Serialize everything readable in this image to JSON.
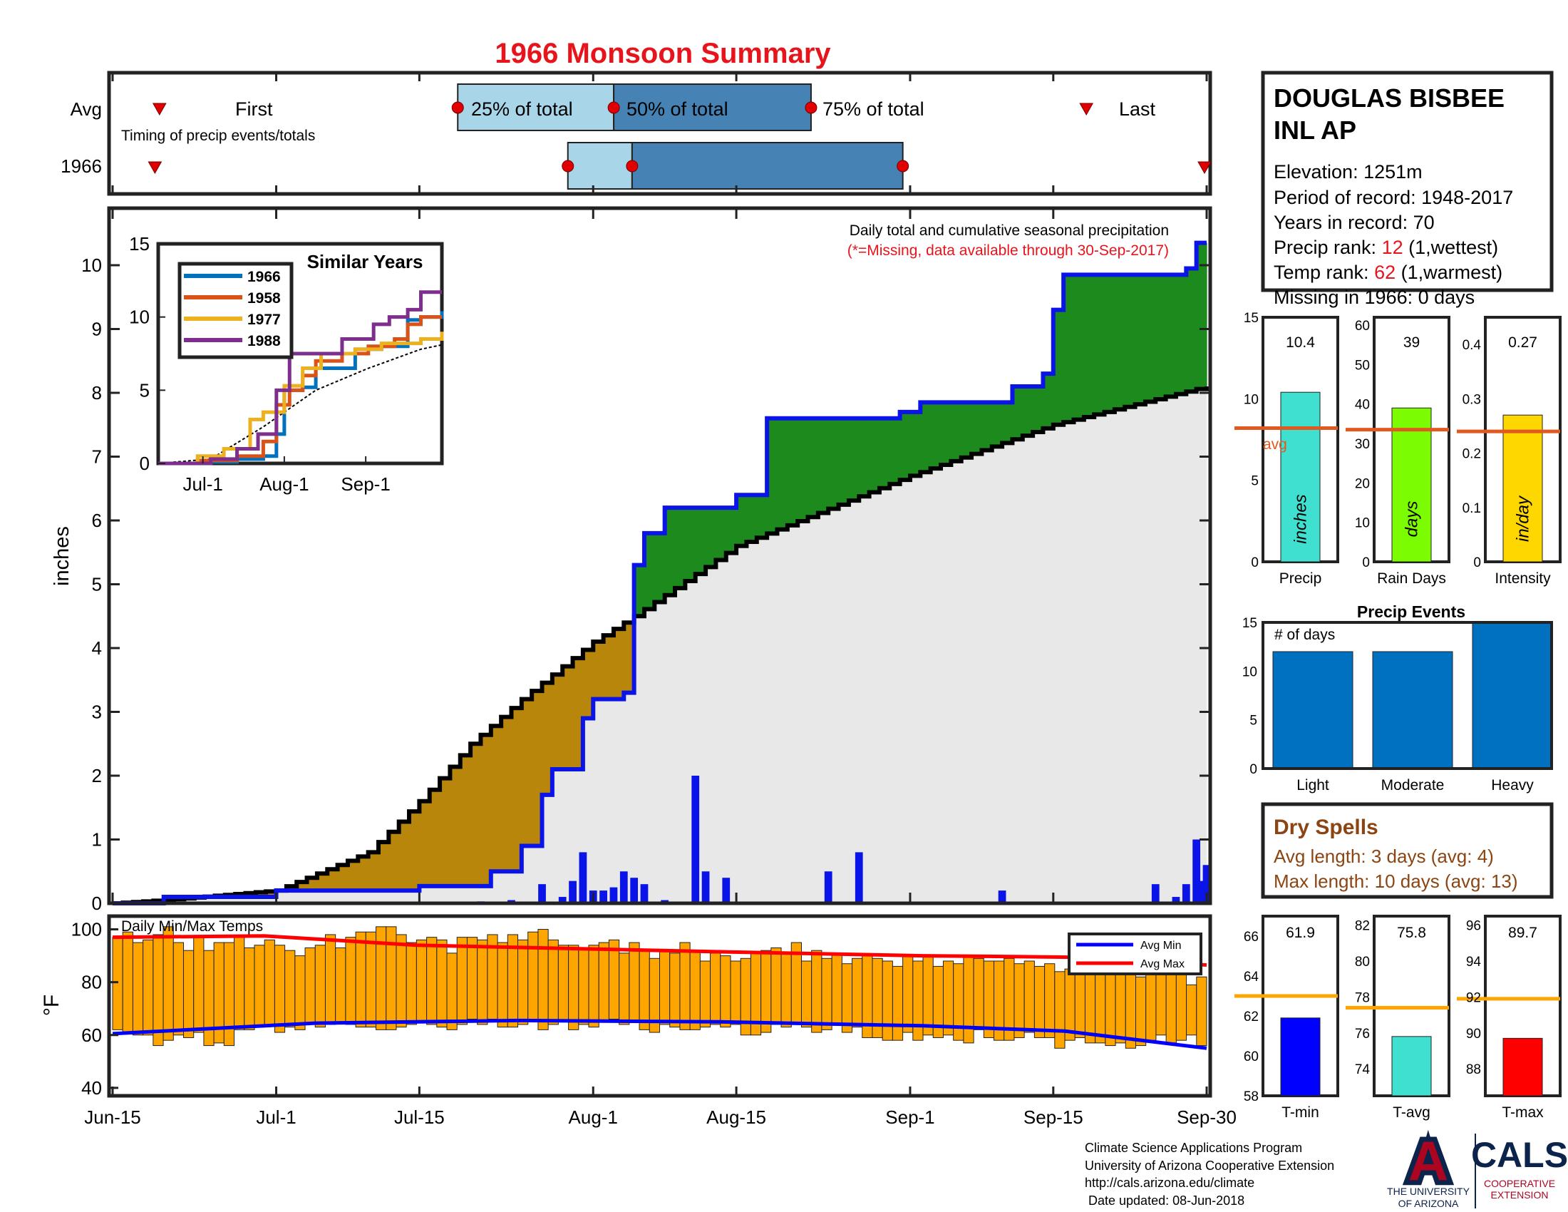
{
  "title": "1966 Monsoon Summary",
  "colors": {
    "title": "#e8141c",
    "precip_fill": "#1d8a1d",
    "deficit_fill": "#b8860b",
    "climo_fill": "#e8e8e8",
    "obs_line": "#0a14e8",
    "box_light": "#a8d6e8",
    "box_dark": "#4682b4",
    "marker": "#e00000",
    "avg_line": "#e05a20",
    "precip_bar": "#40e0d0",
    "days_bar": "#7cfc00",
    "intensity_bar": "#ffd700",
    "events_bar": "#0070c0",
    "temp_bar": "#ffa500",
    "tmin_bar": "#0000ff",
    "tavg_bar": "#40e0d0",
    "tmax_bar": "#ff0000",
    "dry_text": "#8b4513"
  },
  "timing": {
    "row_labels": [
      "Avg",
      "1966"
    ],
    "caption": "Timing of precip events/totals",
    "avg_labels": {
      "first": "First",
      "p25": "25% of total",
      "p50": "50% of total",
      "p75": "75% of total",
      "last": "Last"
    },
    "avg_days": {
      "first": 11,
      "p25": 76,
      "p50": 110,
      "p75": 153,
      "last": 213
    },
    "yr_days": {
      "first": 10,
      "p25": 100,
      "p50": 114,
      "p75": 173,
      "last": 238
    }
  },
  "station": {
    "name_line1": "DOUGLAS BISBEE",
    "name_line2": "INL AP",
    "elevation": "Elevation: 1251m",
    "period": "Period of record: 1948-2017",
    "years": "Years in record: 70",
    "precip_rank_label": "Precip rank: ",
    "precip_rank_value": "12",
    "precip_rank_note": " (1,wettest)",
    "temp_rank_label": "Temp rank: ",
    "temp_rank_value": "62",
    "temp_rank_note": " (1,warmest)",
    "missing": "Missing in 1966: 0 days"
  },
  "main": {
    "note_line1": "Daily total and cumulative seasonal precipitation",
    "note_line2": "(*=Missing, data available through 30-Sep-2017)",
    "ylabel": "inches"
  },
  "inset": {
    "title": "Similar Years",
    "xticks": [
      "Jul-1",
      "Aug-1",
      "Sep-1"
    ],
    "yticks": [
      "0",
      "5",
      "10",
      "15"
    ]
  },
  "summary_bars": {
    "precip": {
      "value": 10.4,
      "label": "10.4",
      "avg": 8.2,
      "xlabel": "Precip",
      "inside": "inches",
      "avg_label": "avg",
      "yticks": [
        "0",
        "5",
        "10",
        "15"
      ]
    },
    "days": {
      "value": 39,
      "label": "39",
      "avg": 33.5,
      "xlabel": "Rain Days",
      "inside": "days",
      "yticks": [
        "0",
        "10",
        "20",
        "30",
        "40",
        "50",
        "60"
      ]
    },
    "intensity": {
      "value": 0.27,
      "label": "0.27",
      "avg": 0.24,
      "xlabel": "Intensity",
      "inside": "in/day",
      "yticks": [
        "0",
        "0.1",
        "0.2",
        "0.3",
        "0.4"
      ]
    }
  },
  "events": {
    "title": "Precip Events",
    "inner_label": "# of days",
    "yticks": [
      "0",
      "5",
      "10",
      "15"
    ]
  },
  "dry_spells": {
    "title": "Dry Spells",
    "avg": "Avg length: 3 days (avg: 4)",
    "max": "Max length: 10 days (avg: 13)"
  },
  "temps_panel": {
    "label": "Daily Min/Max Temps",
    "ylabel": "°F",
    "legend_min": "Avg Min",
    "legend_max": "Avg Max",
    "yticks": [
      "40",
      "60",
      "80",
      "100"
    ],
    "xticks": [
      "Jun-15",
      "Jul-1",
      "Jul-15",
      "Aug-1",
      "Aug-15",
      "Sep-1",
      "Sep-15",
      "Sep-30"
    ]
  },
  "temp_bars": {
    "tmin": {
      "value": 61.9,
      "label": "61.9",
      "avg": 63.0,
      "xlabel": "T-min",
      "yticks": [
        "58",
        "60",
        "62",
        "64",
        "66"
      ]
    },
    "tavg": {
      "value": 75.8,
      "label": "75.8",
      "avg": 77.4,
      "xlabel": "T-avg",
      "yticks": [
        "74",
        "76",
        "78",
        "80",
        "82"
      ]
    },
    "tmax": {
      "value": 89.7,
      "label": "89.7",
      "avg": 91.9,
      "xlabel": "T-max",
      "yticks": [
        "88",
        "90",
        "92",
        "94",
        "96"
      ]
    }
  },
  "footer": {
    "line1": "Climate Science Applications Program",
    "line2": "University of Arizona Cooperative Extension",
    "line3": "http://cals.arizona.edu/climate",
    "line4": " Date updated: 08-Jun-2018",
    "ua_logo": "A",
    "ua_line1": "THE UNIVERSITY",
    "ua_line2": "OF ARIZONA",
    "cals": "CALS",
    "cals_line1": "COOPERATIVE",
    "cals_line2": "EXTENSION"
  },
  "chart_data": [
    {
      "type": "area",
      "title": "Daily total and cumulative seasonal precipitation",
      "ylabel": "inches",
      "ylim": [
        0,
        10.7
      ],
      "xlim": [
        "Jun-15",
        "Sep-30"
      ],
      "x_tick_labels": [
        "Jun-15",
        "Jul-1",
        "Jul-15",
        "Aug-1",
        "Aug-15",
        "Sep-1",
        "Sep-15",
        "Sep-30"
      ],
      "y_tick_labels": [
        "0",
        "1",
        "2",
        "3",
        "4",
        "5",
        "6",
        "7",
        "8",
        "9",
        "10"
      ],
      "cumulative_1966_points": [
        [
          "Jun-15",
          0
        ],
        [
          "Jun-20",
          0.1
        ],
        [
          "Jul-1",
          0.2
        ],
        [
          "Jul-15",
          0.27
        ],
        [
          "Jul-22",
          0.5
        ],
        [
          "Jul-25",
          0.9
        ],
        [
          "Jul-27",
          1.7
        ],
        [
          "Jul-28",
          2.1
        ],
        [
          "Jul-31",
          2.9
        ],
        [
          "Aug-1",
          3.2
        ],
        [
          "Aug-4",
          3.3
        ],
        [
          "Aug-5",
          5.3
        ],
        [
          "Aug-6",
          5.8
        ],
        [
          "Aug-8",
          6.2
        ],
        [
          "Aug-15",
          6.4
        ],
        [
          "Aug-18",
          7.6
        ],
        [
          "Aug-31",
          7.7
        ],
        [
          "Sep-2",
          7.85
        ],
        [
          "Sep-10",
          7.85
        ],
        [
          "Sep-11",
          8.1
        ],
        [
          "Sep-14",
          8.3
        ],
        [
          "Sep-15",
          9.3
        ],
        [
          "Sep-16",
          9.85
        ],
        [
          "Sep-28",
          9.95
        ],
        [
          "Sep-29",
          10.35
        ],
        [
          "Sep-30",
          10.35
        ]
      ],
      "cumulative_average_points": [
        [
          "Jun-15",
          0
        ],
        [
          "Jun-20",
          0.05
        ],
        [
          "Jul-1",
          0.2
        ],
        [
          "Jul-10",
          0.8
        ],
        [
          "Jul-15",
          1.6
        ],
        [
          "Jul-20",
          2.5
        ],
        [
          "Jul-25",
          3.2
        ],
        [
          "Aug-1",
          4.1
        ],
        [
          "Aug-5",
          4.5
        ],
        [
          "Aug-15",
          5.6
        ],
        [
          "Sep-1",
          6.7
        ],
        [
          "Sep-15",
          7.5
        ],
        [
          "Sep-30",
          8.1
        ]
      ],
      "daily_precip": [
        [
          "Jul-21",
          0.03
        ],
        [
          "Jul-24",
          0.05
        ],
        [
          "Jul-27",
          0.3
        ],
        [
          "Jul-29",
          0.1
        ],
        [
          "Jul-30",
          0.35
        ],
        [
          "Jul-31",
          0.8
        ],
        [
          "Aug-1",
          0.2
        ],
        [
          "Aug-2",
          0.2
        ],
        [
          "Aug-3",
          0.25
        ],
        [
          "Aug-4",
          0.5
        ],
        [
          "Aug-5",
          0.4
        ],
        [
          "Aug-6",
          0.3
        ],
        [
          "Aug-8",
          0.05
        ],
        [
          "Aug-11",
          2.0
        ],
        [
          "Aug-12",
          0.5
        ],
        [
          "Aug-14",
          0.4
        ],
        [
          "Aug-24",
          0.5
        ],
        [
          "Aug-27",
          0.8
        ],
        [
          "Sep-10",
          0.2
        ],
        [
          "Sep-25",
          0.3
        ],
        [
          "Sep-27",
          0.1
        ],
        [
          "Sep-28",
          0.3
        ],
        [
          "Sep-29",
          1.0
        ],
        [
          "Sep-30",
          0.6
        ],
        [
          "Sep-30",
          0.35
        ]
      ]
    },
    {
      "type": "line",
      "title": "Similar Years",
      "xticks": [
        "Jul-1",
        "Aug-1",
        "Sep-1"
      ],
      "ylim": [
        0,
        15
      ],
      "series": [
        {
          "name": "1966",
          "color": "#0072bd",
          "points": [
            [
              0,
              0
            ],
            [
              20,
              0.1
            ],
            [
              30,
              0.3
            ],
            [
              40,
              0.5
            ],
            [
              45,
              2
            ],
            [
              48,
              5
            ],
            [
              55,
              5.2
            ],
            [
              60,
              6.5
            ],
            [
              75,
              7.8
            ],
            [
              85,
              8
            ],
            [
              95,
              9.8
            ],
            [
              100,
              10
            ],
            [
              108,
              10.4
            ]
          ]
        },
        {
          "name": "1958",
          "color": "#d95319",
          "points": [
            [
              0,
              0
            ],
            [
              15,
              0.2
            ],
            [
              30,
              0.5
            ],
            [
              40,
              1.5
            ],
            [
              45,
              4
            ],
            [
              50,
              5
            ],
            [
              55,
              6
            ],
            [
              60,
              7
            ],
            [
              70,
              7.5
            ],
            [
              80,
              8
            ],
            [
              90,
              8.5
            ],
            [
              95,
              9.5
            ],
            [
              100,
              10
            ],
            [
              108,
              10
            ]
          ]
        },
        {
          "name": "1977",
          "color": "#edb120",
          "points": [
            [
              0,
              0
            ],
            [
              15,
              0.5
            ],
            [
              25,
              1
            ],
            [
              35,
              3
            ],
            [
              40,
              3.5
            ],
            [
              48,
              5.3
            ],
            [
              55,
              6.5
            ],
            [
              62,
              7.5
            ],
            [
              75,
              7.8
            ],
            [
              85,
              8.2
            ],
            [
              100,
              8.5
            ],
            [
              108,
              9
            ]
          ]
        },
        {
          "name": "1988",
          "color": "#7e2f8e",
          "points": [
            [
              0,
              0
            ],
            [
              20,
              0.3
            ],
            [
              30,
              1
            ],
            [
              38,
              2
            ],
            [
              45,
              5
            ],
            [
              50,
              7.5
            ],
            [
              60,
              7.5
            ],
            [
              70,
              8.5
            ],
            [
              75,
              8.5
            ],
            [
              82,
              9.5
            ],
            [
              88,
              10
            ],
            [
              95,
              10.5
            ],
            [
              100,
              11.7
            ],
            [
              108,
              11.7
            ]
          ]
        }
      ],
      "average_line": [
        [
          0,
          0
        ],
        [
          20,
          0.3
        ],
        [
          40,
          2.5
        ],
        [
          60,
          5
        ],
        [
          80,
          6.5
        ],
        [
          100,
          7.8
        ],
        [
          108,
          8.1
        ]
      ]
    },
    {
      "type": "bar",
      "title": "Precip Events",
      "categories": [
        "Light",
        "Moderate",
        "Heavy"
      ],
      "values": [
        12,
        12,
        15
      ],
      "ylim": [
        0,
        15
      ]
    },
    {
      "type": "bar",
      "categories": [
        "Precip",
        "Rain Days",
        "Intensity"
      ],
      "values": [
        10.4,
        39,
        0.27
      ],
      "avg": [
        8.2,
        33.5,
        0.24
      ]
    },
    {
      "type": "bar",
      "categories": [
        "T-min",
        "T-avg",
        "T-max"
      ],
      "values": [
        61.9,
        75.8,
        89.7
      ],
      "avg": [
        63.0,
        77.4,
        91.9
      ]
    },
    {
      "type": "bar",
      "title": "Daily Min/Max Temps",
      "ylabel": "°F",
      "ylim": [
        37,
        105
      ],
      "days": 108,
      "daily_min": [
        62,
        61,
        60,
        60,
        56,
        58,
        60,
        59,
        61,
        56,
        57,
        56,
        62,
        62,
        63,
        64,
        61,
        63,
        62,
        64,
        63,
        64,
        65,
        64,
        63,
        63,
        62,
        62,
        63,
        64,
        65,
        64,
        63,
        62,
        64,
        66,
        64,
        66,
        63,
        63,
        64,
        65,
        62,
        64,
        65,
        62,
        64,
        63,
        65,
        66,
        64,
        65,
        62,
        61,
        64,
        63,
        62,
        62,
        63,
        64,
        63,
        64,
        60,
        60,
        61,
        64,
        63,
        64,
        63,
        61,
        62,
        64,
        61,
        63,
        59,
        59,
        58,
        58,
        61,
        58,
        60,
        59,
        60,
        58,
        57,
        62,
        59,
        58,
        58,
        59,
        61,
        59,
        59,
        55,
        58,
        59,
        57,
        57,
        56,
        57,
        55,
        56,
        58,
        60,
        57,
        58,
        60,
        56
      ],
      "daily_max": [
        97,
        99,
        95,
        96,
        98,
        101,
        95,
        92,
        97,
        92,
        95,
        95,
        97,
        93,
        94,
        96,
        94,
        92,
        90,
        93,
        94,
        98,
        93,
        97,
        99,
        99,
        101,
        101,
        98,
        95,
        96,
        97,
        96,
        91,
        97,
        97,
        96,
        98,
        95,
        98,
        96,
        99,
        100,
        96,
        94,
        94,
        93,
        94,
        95,
        96,
        91,
        95,
        92,
        89,
        92,
        91,
        95,
        92,
        88,
        91,
        90,
        88,
        89,
        91,
        92,
        93,
        91,
        95,
        88,
        92,
        89,
        91,
        87,
        89,
        90,
        89,
        88,
        86,
        90,
        88,
        90,
        86,
        88,
        87,
        90,
        89,
        88,
        88,
        89,
        87,
        88,
        86,
        87,
        84,
        85,
        85,
        86,
        84,
        86,
        85,
        83,
        82,
        84,
        87,
        84,
        83,
        79,
        82
      ],
      "avg_min_line": [
        [
          0,
          60.5
        ],
        [
          20,
          64.5
        ],
        [
          40,
          65.5
        ],
        [
          60,
          65
        ],
        [
          80,
          63.5
        ],
        [
          94,
          61.5
        ],
        [
          108,
          55
        ]
      ],
      "avg_max_line": [
        [
          0,
          97
        ],
        [
          15,
          97.5
        ],
        [
          30,
          94
        ],
        [
          60,
          91.5
        ],
        [
          80,
          90
        ],
        [
          94,
          89.5
        ],
        [
          108,
          86.5
        ]
      ]
    }
  ]
}
